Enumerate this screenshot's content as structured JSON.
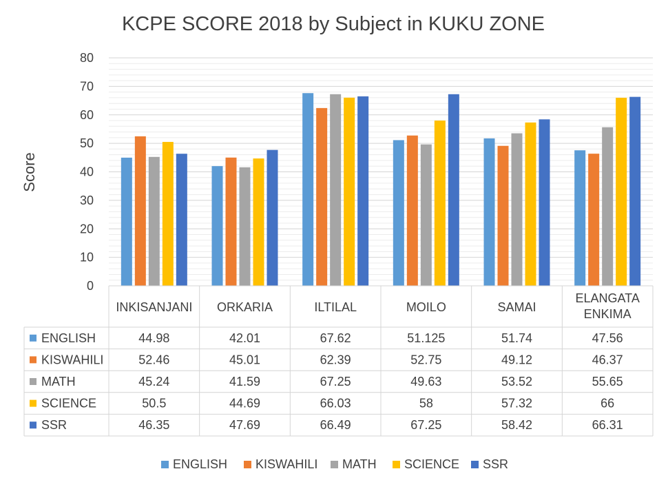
{
  "chart_data": {
    "type": "bar",
    "title": "KCPE SCORE 2018 by Subject in KUKU ZONE",
    "xlabel": "",
    "ylabel": "Score",
    "ylim": [
      0,
      80
    ],
    "yticks": [
      0,
      10,
      20,
      30,
      40,
      50,
      60,
      70,
      80
    ],
    "grid": true,
    "legend_position": "bottom",
    "data_table": true,
    "categories": [
      "INKISANJANI",
      "ORKARIA",
      "ILTILAL",
      "MOILO",
      "SAMAI",
      "ELANGATA ENKIMA"
    ],
    "series": [
      {
        "name": "ENGLISH",
        "color": "#5b9bd5",
        "values": [
          44.98,
          42.01,
          67.62,
          51.125,
          51.74,
          47.56
        ],
        "labels": [
          "44.98",
          "42.01",
          "67.62",
          "51.125",
          "51.74",
          "47.56"
        ]
      },
      {
        "name": "KISWAHILI",
        "color": "#ed7d31",
        "values": [
          52.46,
          45.01,
          62.39,
          52.75,
          49.12,
          46.37
        ],
        "labels": [
          "52.46",
          "45.01",
          "62.39",
          "52.75",
          "49.12",
          "46.37"
        ]
      },
      {
        "name": "MATH",
        "color": "#a5a5a5",
        "values": [
          45.24,
          41.59,
          67.25,
          49.63,
          53.52,
          55.65
        ],
        "labels": [
          "45.24",
          "41.59",
          "67.25",
          "49.63",
          "53.52",
          "55.65"
        ]
      },
      {
        "name": "SCIENCE",
        "color": "#ffc000",
        "values": [
          50.5,
          44.69,
          66.03,
          58,
          57.32,
          66
        ],
        "labels": [
          "50.5",
          "44.69",
          "66.03",
          "58",
          "57.32",
          "66"
        ]
      },
      {
        "name": "SSR",
        "color": "#4472c4",
        "values": [
          46.35,
          47.69,
          66.49,
          67.25,
          58.42,
          66.31
        ],
        "labels": [
          "46.35",
          "47.69",
          "66.49",
          "67.25",
          "58.42",
          "66.31"
        ]
      }
    ]
  }
}
